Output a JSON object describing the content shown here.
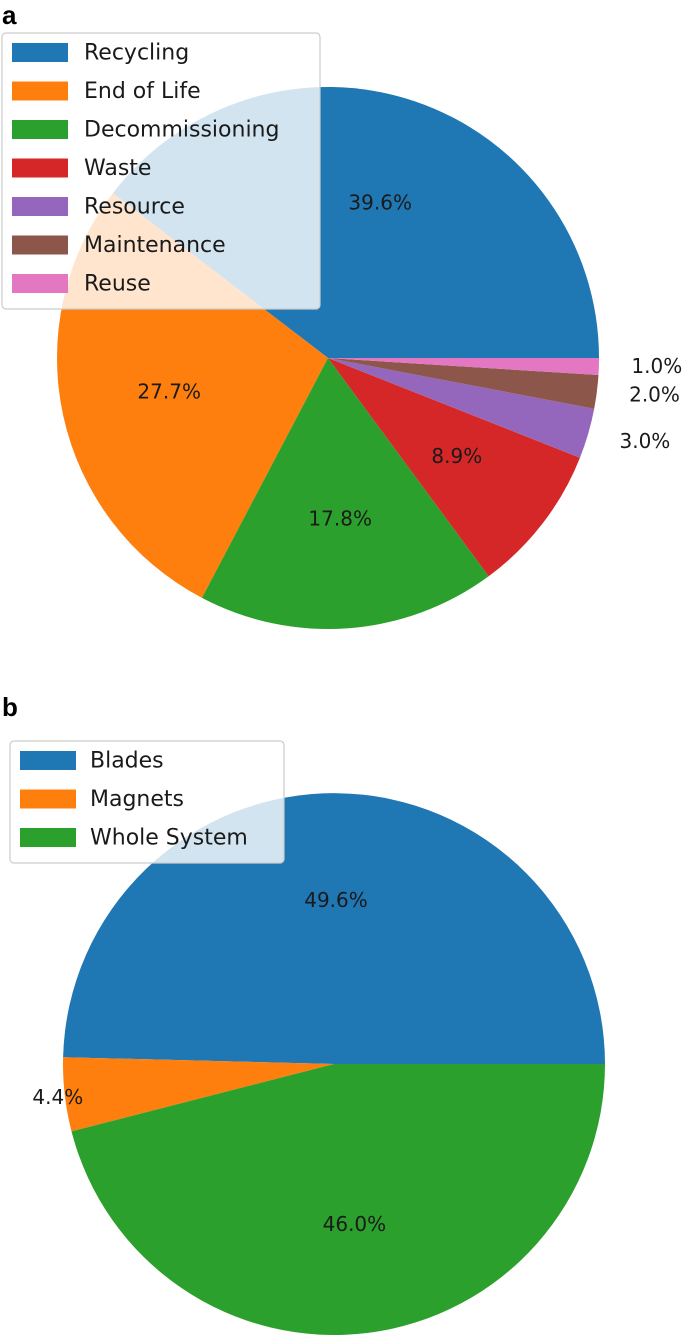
{
  "panels": [
    {
      "letter": "a",
      "chart_data": {
        "type": "pie",
        "categories": [
          "Recycling",
          "End of Life",
          "Decommissioning",
          "Waste",
          "Resource",
          "Maintenance",
          "Reuse"
        ],
        "values": [
          39.6,
          27.7,
          17.8,
          8.9,
          3.0,
          2.0,
          1.0
        ],
        "labels": [
          "39.6%",
          "27.7%",
          "17.8%",
          "8.9%",
          "3.0%",
          "2.0%",
          "1.0%"
        ],
        "colors": [
          "#1f77b4",
          "#ff7f0e",
          "#2ca02c",
          "#d62728",
          "#9467bd",
          "#8c564b",
          "#e377c2"
        ],
        "start_angle": 0,
        "direction": "counterclockwise",
        "legend_position": "upper-left"
      }
    },
    {
      "letter": "b",
      "chart_data": {
        "type": "pie",
        "categories": [
          "Blades",
          "Magnets",
          "Whole System"
        ],
        "values": [
          49.6,
          4.4,
          46.0
        ],
        "labels": [
          "49.6%",
          "4.4%",
          "46.0%"
        ],
        "colors": [
          "#1f77b4",
          "#ff7f0e",
          "#2ca02c"
        ],
        "start_angle": 0,
        "direction": "counterclockwise",
        "legend_position": "upper-left"
      }
    }
  ]
}
